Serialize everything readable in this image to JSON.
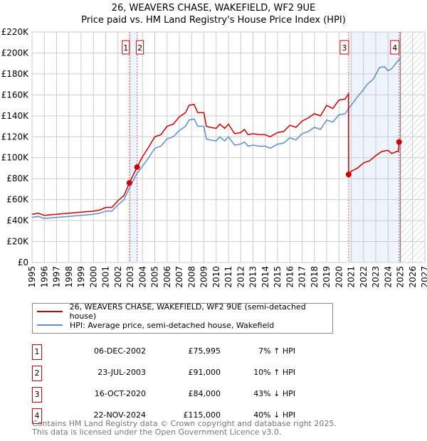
{
  "title": "26, WEAVERS CHASE, WAKEFIELD, WF2 9UE",
  "subtitle": "Price paid vs. HM Land Registry's House Price Index (HPI)",
  "chart_data": {
    "type": "line",
    "ylim": [
      0,
      220000
    ],
    "xlim": [
      1995,
      2027
    ],
    "yticks": [
      {
        "v": 0,
        "label": "£0"
      },
      {
        "v": 20000,
        "label": "£20K"
      },
      {
        "v": 40000,
        "label": "£40K"
      },
      {
        "v": 60000,
        "label": "£60K"
      },
      {
        "v": 80000,
        "label": "£80K"
      },
      {
        "v": 100000,
        "label": "£100K"
      },
      {
        "v": 120000,
        "label": "£120K"
      },
      {
        "v": 140000,
        "label": "£140K"
      },
      {
        "v": 160000,
        "label": "£160K"
      },
      {
        "v": 180000,
        "label": "£180K"
      },
      {
        "v": 200000,
        "label": "£200K"
      },
      {
        "v": 220000,
        "label": "£220K"
      }
    ],
    "xticks": [
      "1995",
      "1996",
      "1997",
      "1998",
      "1999",
      "2000",
      "2001",
      "2002",
      "2003",
      "2004",
      "2005",
      "2006",
      "2007",
      "2008",
      "2009",
      "2010",
      "2011",
      "2012",
      "2013",
      "2014",
      "2015",
      "2016",
      "2017",
      "2018",
      "2019",
      "2020",
      "2021",
      "2022",
      "2023",
      "2024",
      "2025",
      "2026",
      "2027"
    ],
    "shaded_ranges": [
      [
        2002.93,
        2003.56
      ],
      [
        2020.79,
        2024.9
      ]
    ],
    "forecast_start": 2025.0,
    "series": [
      {
        "name": "26, WEAVERS CHASE, WAKEFIELD, WF2 9UE (semi-detached house)",
        "color": "#cc0000",
        "x": [
          1995,
          1995.5,
          1996,
          1997,
          1998,
          1999,
          2000,
          2000.5,
          2001,
          2001.5,
          2002,
          2002.5,
          2002.93,
          2003.56,
          2004,
          2004.5,
          2005,
          2005.5,
          2006,
          2006.5,
          2007,
          2007.5,
          2007.8,
          2008.2,
          2008.5,
          2009,
          2009.2,
          2009.5,
          2010,
          2010.3,
          2010.7,
          2011,
          2011.5,
          2012,
          2012.3,
          2012.6,
          2013,
          2013.5,
          2014,
          2014.4,
          2015,
          2015.5,
          2016,
          2016.5,
          2017,
          2017.5,
          2018,
          2018.5,
          2019,
          2019.5,
          2020,
          2020.5,
          2020.78,
          2020.79,
          2021,
          2021.5,
          2022,
          2022.5,
          2023,
          2023.5,
          2024,
          2024.3,
          2024.7,
          2024.85,
          2024.9,
          2025.0
        ],
        "y": [
          46,
          47,
          45,
          46,
          47,
          48,
          49,
          50,
          52.5,
          52.5,
          59,
          64,
          76,
          91,
          101,
          110,
          120,
          122,
          130,
          132,
          139,
          143,
          150,
          151,
          143,
          143,
          130,
          129,
          128,
          132,
          128,
          132,
          123,
          124,
          127,
          122,
          123,
          122,
          122,
          120,
          124,
          125,
          131,
          129,
          135,
          138,
          142,
          140,
          150,
          147,
          155,
          156,
          161,
          84,
          87,
          90,
          95,
          97,
          102,
          106,
          107,
          104,
          106,
          106,
          115,
          117
        ]
      },
      {
        "name": "HPI: Average price, semi-detached house, Wakefield",
        "color": "#5b8fd0",
        "x": [
          1995,
          1995.5,
          1996,
          1997,
          1998,
          1999,
          2000,
          2000.5,
          2001,
          2001.5,
          2002,
          2002.5,
          2002.93,
          2003.5,
          2004,
          2004.5,
          2005,
          2005.5,
          2006,
          2006.5,
          2007,
          2007.5,
          2007.8,
          2008.2,
          2008.5,
          2009,
          2009.2,
          2009.5,
          2010,
          2010.3,
          2010.7,
          2011,
          2011.5,
          2012,
          2012.3,
          2012.6,
          2013,
          2013.5,
          2014,
          2014.4,
          2015,
          2015.5,
          2016,
          2016.5,
          2017,
          2017.5,
          2018,
          2018.5,
          2019,
          2019.5,
          2020,
          2020.5,
          2020.79,
          2021,
          2021.5,
          2022,
          2022.3,
          2022.8,
          2023.3,
          2023.7,
          2024,
          2024.3,
          2024.7,
          2025,
          2025.0
        ],
        "y": [
          43,
          44,
          42,
          43,
          44,
          45,
          46,
          47,
          49,
          49,
          55,
          60,
          71,
          84,
          92,
          100,
          109,
          111,
          118,
          120,
          126,
          130,
          136,
          137,
          130,
          130,
          118,
          117,
          116,
          120,
          116,
          120,
          112,
          113,
          115,
          111,
          112,
          111,
          111,
          109,
          113,
          114,
          119,
          117,
          123,
          125,
          129,
          127,
          136,
          134,
          141,
          142,
          147,
          150,
          158,
          165,
          170,
          175,
          186,
          187,
          183,
          185,
          191,
          195,
          196
        ]
      }
    ],
    "sales": [
      {
        "n": "1",
        "x": 2002.93,
        "y": 75995
      },
      {
        "n": "2",
        "x": 2003.56,
        "y": 91000
      },
      {
        "n": "3",
        "x": 2020.79,
        "y": 84000
      },
      {
        "n": "4",
        "x": 2024.9,
        "y": 115000
      }
    ]
  },
  "legend": {
    "red": "26, WEAVERS CHASE, WAKEFIELD, WF2 9UE (semi-detached house)",
    "blue": "HPI: Average price, semi-detached house, Wakefield"
  },
  "table": [
    {
      "n": "1",
      "date": "06-DEC-2002",
      "price": "£75,995",
      "hpi": "7% ↑ HPI"
    },
    {
      "n": "2",
      "date": "23-JUL-2003",
      "price": "£91,000",
      "hpi": "10% ↑ HPI"
    },
    {
      "n": "3",
      "date": "16-OCT-2020",
      "price": "£84,000",
      "hpi": "43% ↓ HPI"
    },
    {
      "n": "4",
      "date": "22-NOV-2024",
      "price": "£115,000",
      "hpi": "40% ↓ HPI"
    }
  ],
  "footer": [
    "Contains HM Land Registry data © Crown copyright and database right 2025.",
    "This data is licensed under the Open Government Licence v3.0."
  ]
}
